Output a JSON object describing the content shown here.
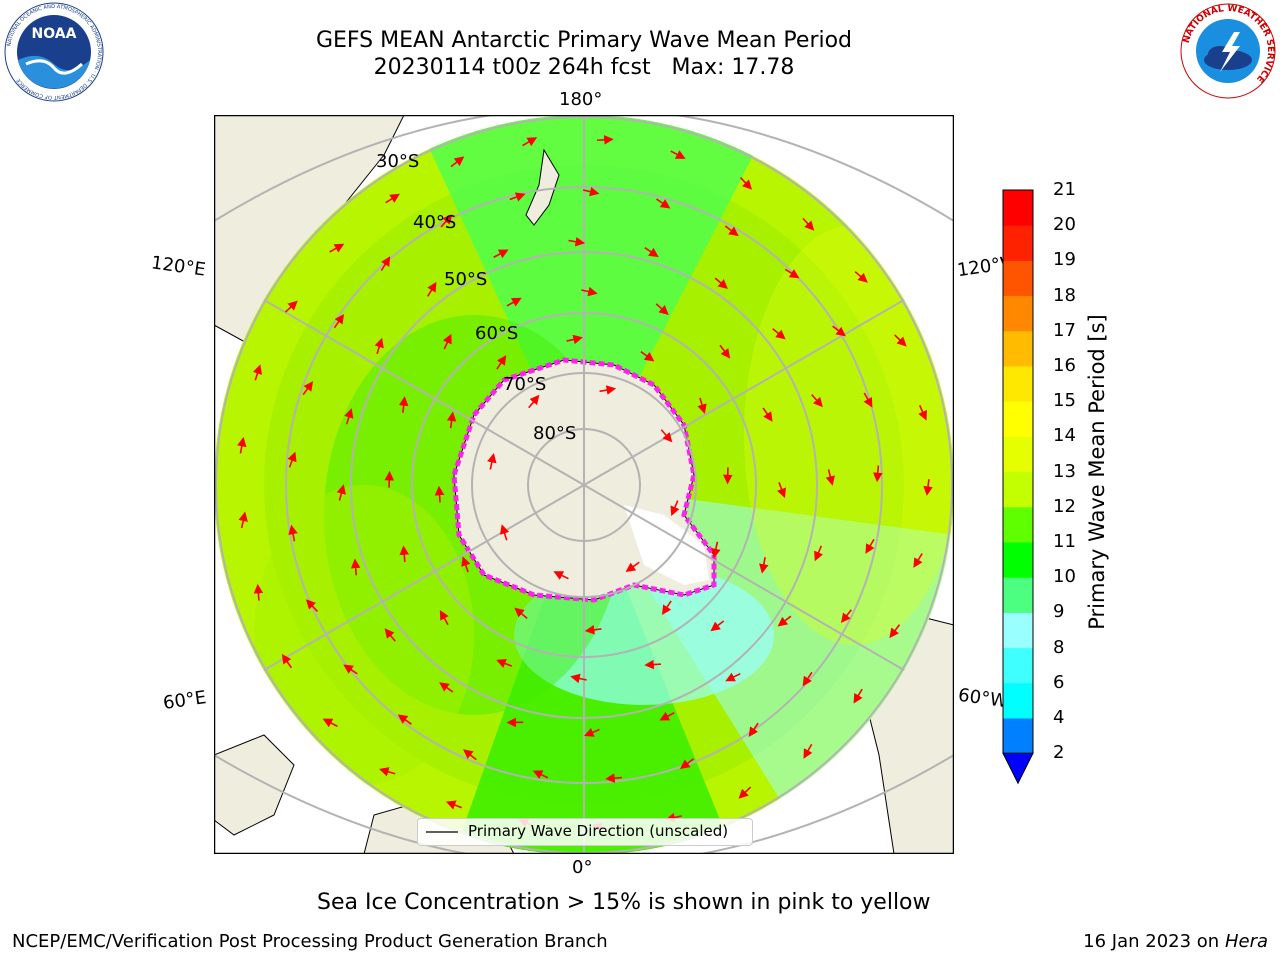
{
  "header": {
    "title_line1": "GEFS MEAN Antarctic Primary Wave Mean Period",
    "title_line2": "20230114 t00z 264h fcst   Max: 17.78"
  },
  "logos": {
    "noaa_text": "NOAA",
    "noaa_ring": "NATIONAL OCEANIC AND ATMOSPHERIC ADMINISTRATION · U.S. DEPARTMENT OF COMMERCE",
    "nws_ring": "NATIONAL WEATHER SERVICE"
  },
  "map": {
    "lon_labels": {
      "top": "180°",
      "bottom": "0°",
      "left_upper": "120°E",
      "right_upper": "120°W",
      "left_lower": "60°E",
      "right_lower": "60°W"
    },
    "lat_labels": [
      "30°S",
      "40°S",
      "50°S",
      "60°S",
      "70°S",
      "80°S"
    ],
    "legend_text": "Primary Wave Direction (unscaled)",
    "colors": {
      "land": "#efedde",
      "ice": "#ffffff",
      "ice_edge": "#ff22ee",
      "arrow": "#ff0000",
      "grid": "#b3b3b3"
    }
  },
  "colorbar": {
    "label": "Primary Wave Mean Period [s]",
    "ticks": [
      "21",
      "20",
      "19",
      "18",
      "17",
      "16",
      "15",
      "14",
      "13",
      "12",
      "11",
      "10",
      "9",
      "8",
      "6",
      "4",
      "2"
    ],
    "colors": [
      "#0000ff",
      "#0080ff",
      "#00ffff",
      "#40ffff",
      "#99ffff",
      "#4cff80",
      "#00ff00",
      "#60ff00",
      "#c4ff00",
      "#e6ff00",
      "#ffff00",
      "#ffe800",
      "#ffbb00",
      "#ff8800",
      "#ff5500",
      "#ff2200",
      "#ff0000"
    ]
  },
  "footer": {
    "subtitle": "Sea Ice Concentration > 15% is shown in pink to yellow",
    "credit": "NCEP/EMC/Verification Post Processing Product Generation Branch",
    "date_prefix": "16 Jan 2023 on ",
    "date_machine": "Hera"
  }
}
